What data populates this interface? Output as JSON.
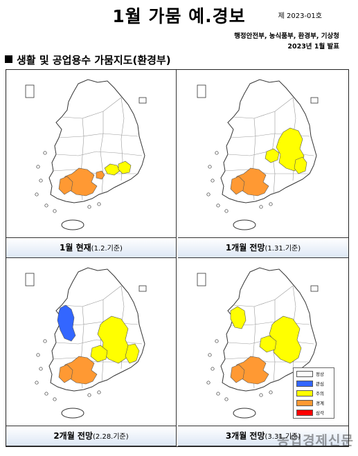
{
  "header": {
    "title": "1월 가뭄 예.경보",
    "doc_no": "제 2023-01호",
    "agencies": "행정안전부, 농식품부, 환경부, 기상청",
    "date": "2023년 1월 발표"
  },
  "section_title": "생활 및 공업용수 가뭄지도(환경부)",
  "colors": {
    "normal": "#ffffff",
    "attention": "#3366ff",
    "caution": "#ffff00",
    "warning": "#ff9933",
    "serious": "#ff0000"
  },
  "panels": [
    {
      "label": "1월 현재",
      "sub": "(1.2.기준)"
    },
    {
      "label": "1개월 전망",
      "sub": "(1.31.기준)"
    },
    {
      "label": "2개월 전망",
      "sub": "(2.28.기준)"
    },
    {
      "label": "3개월 전망",
      "sub": "(3.31.기준)"
    }
  ],
  "legend": {
    "items": [
      {
        "label": "정상",
        "color": "#ffffff"
      },
      {
        "label": "관심",
        "color": "#3366ff"
      },
      {
        "label": "주의",
        "color": "#ffff00"
      },
      {
        "label": "경계",
        "color": "#ff9933"
      },
      {
        "label": "심각",
        "color": "#ff0000"
      }
    ]
  },
  "watermark": "농업경제신문"
}
